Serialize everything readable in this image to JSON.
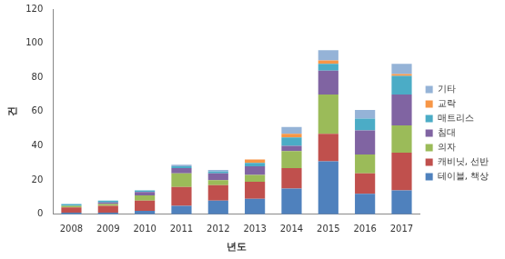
{
  "chart_data": {
    "type": "bar",
    "x_label": "년도",
    "y_label": "건",
    "categories": [
      "2008",
      "2009",
      "2010",
      "2011",
      "2012",
      "2013",
      "2014",
      "2015",
      "2016",
      "2017"
    ],
    "series": [
      {
        "name": "테이블, 책상",
        "color": "#4f81bd",
        "values": [
          1,
          1,
          2,
          5,
          8,
          9,
          15,
          31,
          12,
          14
        ]
      },
      {
        "name": "캐비닛, 선반",
        "color": "#c0504d",
        "values": [
          3,
          4,
          6,
          11,
          9,
          10,
          12,
          16,
          12,
          22
        ]
      },
      {
        "name": "의자",
        "color": "#9bbb59",
        "values": [
          1,
          1,
          3,
          8,
          3,
          4,
          10,
          23,
          11,
          16
        ]
      },
      {
        "name": "침대",
        "color": "#8064a2",
        "values": [
          0,
          1,
          2,
          3,
          4,
          5,
          3,
          14,
          14,
          18
        ]
      },
      {
        "name": "매트리스",
        "color": "#4bacc6",
        "values": [
          1,
          1,
          1,
          1,
          1,
          2,
          5,
          4,
          7,
          11
        ]
      },
      {
        "name": "교락",
        "color": "#f79646",
        "values": [
          0,
          0,
          0,
          0,
          0,
          2,
          2,
          2,
          0,
          1
        ]
      },
      {
        "name": "기타",
        "color": "#95b3d7",
        "values": [
          0,
          0,
          0,
          1,
          1,
          0,
          4,
          6,
          5,
          6
        ]
      }
    ],
    "stacked": true,
    "ylim": [
      0,
      120
    ],
    "yticks": [
      0,
      20,
      40,
      60,
      80,
      100,
      120
    ],
    "grid": false,
    "legend": "right"
  }
}
